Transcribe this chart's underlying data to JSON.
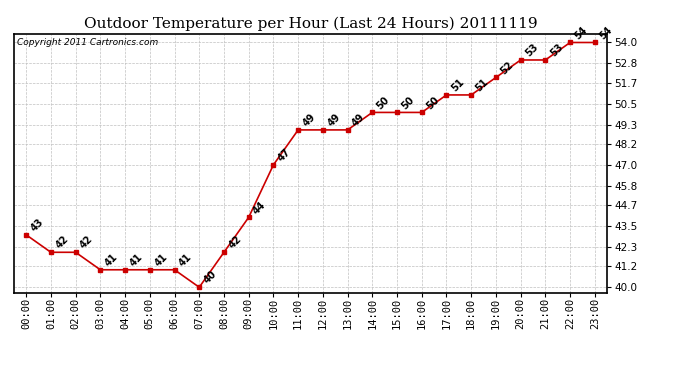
{
  "title": "Outdoor Temperature per Hour (Last 24 Hours) 20111119",
  "copyright": "Copyright 2011 Cartronics.com",
  "hours": [
    "00:00",
    "01:00",
    "02:00",
    "03:00",
    "04:00",
    "05:00",
    "06:00",
    "07:00",
    "08:00",
    "09:00",
    "10:00",
    "11:00",
    "12:00",
    "13:00",
    "14:00",
    "15:00",
    "16:00",
    "17:00",
    "18:00",
    "19:00",
    "20:00",
    "21:00",
    "22:00",
    "23:00"
  ],
  "temps": [
    43,
    42,
    42,
    41,
    41,
    41,
    41,
    40,
    42,
    44,
    47,
    49,
    49,
    49,
    50,
    50,
    50,
    51,
    51,
    52,
    53,
    53,
    54,
    54
  ],
  "line_color": "#cc0000",
  "marker_color": "#cc0000",
  "bg_color": "#ffffff",
  "grid_color": "#c0c0c0",
  "yticks": [
    40.0,
    41.2,
    42.3,
    43.5,
    44.7,
    45.8,
    47.0,
    48.2,
    49.3,
    50.5,
    51.7,
    52.8,
    54.0
  ],
  "ylim": [
    39.7,
    54.5
  ],
  "title_fontsize": 11,
  "label_fontsize": 7.5,
  "annotation_fontsize": 7,
  "copyright_fontsize": 6.5
}
